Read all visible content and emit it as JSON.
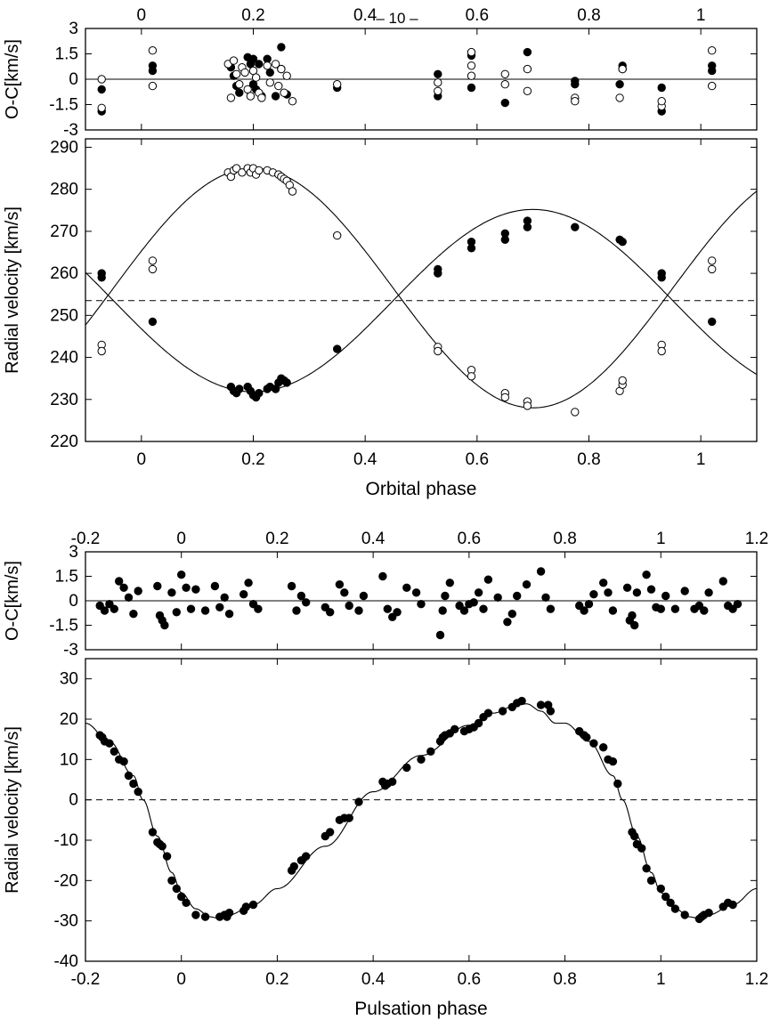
{
  "page_header": "– 10 –",
  "chart_data": [
    {
      "id": "orbital_oc",
      "type": "scatter",
      "xlim": [
        -0.1,
        1.1
      ],
      "ylim": [
        -3,
        3
      ],
      "xticks": [
        0,
        0.2,
        0.4,
        0.6,
        0.8,
        1
      ],
      "xtick_labels": [
        "0",
        "0.2",
        "0.4",
        "0.6",
        "0.8",
        "1"
      ],
      "yticks": [
        3,
        1.5,
        0,
        -1.5,
        -3
      ],
      "ytick_labels": [
        "3",
        "1.5",
        "0",
        "-1.5",
        "-3"
      ],
      "ylabel": "O-C[km/s]",
      "zero_line": 0,
      "series": [
        {
          "name": "primary (filled)",
          "marker": "filled",
          "x": [
            -0.071,
            -0.071,
            0.02,
            0.02,
            0.16,
            0.165,
            0.17,
            0.175,
            0.19,
            0.195,
            0.2,
            0.2,
            0.205,
            0.21,
            0.215,
            0.225,
            0.23,
            0.24,
            0.25,
            0.25,
            0.26,
            0.35,
            0.53,
            0.53,
            0.59,
            0.59,
            0.65,
            0.69,
            0.775,
            0.775,
            0.855,
            0.86,
            0.86,
            0.93,
            0.93,
            1.02,
            1.02
          ],
          "y": [
            -0.6,
            -1.9,
            0.5,
            0.8,
            0.7,
            0.2,
            -0.4,
            -0.8,
            1.3,
            0.9,
            1.2,
            -0.3,
            -0.6,
            0.9,
            -1.0,
            1.2,
            0.4,
            -1.0,
            1.9,
            0.6,
            -0.9,
            -0.5,
            0.3,
            -1.0,
            1.4,
            -0.5,
            -1.4,
            1.6,
            -0.1,
            -0.3,
            -0.3,
            0.8,
            0.6,
            -0.5,
            -1.9,
            0.5,
            0.8
          ]
        },
        {
          "name": "secondary (open)",
          "marker": "open",
          "x": [
            -0.071,
            -0.071,
            0.02,
            0.02,
            0.155,
            0.16,
            0.165,
            0.17,
            0.175,
            0.18,
            0.185,
            0.19,
            0.195,
            0.2,
            0.205,
            0.21,
            0.215,
            0.225,
            0.23,
            0.24,
            0.245,
            0.25,
            0.255,
            0.26,
            0.27,
            0.35,
            0.53,
            0.53,
            0.59,
            0.59,
            0.59,
            0.65,
            0.65,
            0.69,
            0.69,
            0.775,
            0.775,
            0.855,
            0.86,
            0.93,
            0.93,
            1.02,
            1.02
          ],
          "y": [
            0,
            -1.7,
            1.7,
            -0.4,
            0.9,
            -1.1,
            1.1,
            0.3,
            -0.3,
            0.7,
            0.4,
            -0.6,
            -1.0,
            0.5,
            0.1,
            -0.8,
            -1.1,
            0.8,
            -0.2,
            0.9,
            -0.4,
            0.6,
            -0.8,
            0.2,
            -1.3,
            -0.3,
            -0.2,
            -0.7,
            1.6,
            0.8,
            0.2,
            0.3,
            -0.3,
            0.6,
            -0.7,
            -1.1,
            -1.3,
            -1.1,
            0.6,
            -1.6,
            -1.3,
            1.7,
            -0.4
          ]
        }
      ]
    },
    {
      "id": "orbital_rv",
      "type": "scatter",
      "xlim": [
        -0.1,
        1.1
      ],
      "ylim": [
        220,
        292
      ],
      "xticks": [
        0,
        0.2,
        0.4,
        0.6,
        0.8,
        1
      ],
      "xtick_labels": [
        "0",
        "0.2",
        "0.4",
        "0.6",
        "0.8",
        "1"
      ],
      "yticks": [
        290,
        280,
        270,
        260,
        250,
        240,
        230,
        220
      ],
      "ytick_labels": [
        "290",
        "280",
        "270",
        "260",
        "250",
        "240",
        "230",
        "220"
      ],
      "xlabel": "Orbital phase",
      "ylabel": "Radial velocity [km/s]",
      "gamma_velocity": 253.5,
      "model_curves": [
        {
          "name": "primary orbit",
          "gamma": 253.5,
          "K": 21.7,
          "phase_of_min": 0.2
        },
        {
          "name": "secondary orbit",
          "gamma": 256.5,
          "K": 28.5,
          "phase_of_max": 0.2
        }
      ],
      "series": [
        {
          "name": "primary (filled)",
          "marker": "filled",
          "x": [
            -0.071,
            -0.071,
            0.02,
            0.16,
            0.165,
            0.17,
            0.175,
            0.19,
            0.195,
            0.2,
            0.205,
            0.21,
            0.225,
            0.23,
            0.24,
            0.245,
            0.25,
            0.255,
            0.26,
            0.35,
            0.53,
            0.53,
            0.59,
            0.59,
            0.65,
            0.65,
            0.69,
            0.69,
            0.775,
            0.855,
            0.86,
            0.93,
            0.93,
            1.02
          ],
          "y": [
            260,
            259,
            248.5,
            233,
            232,
            231.5,
            232.5,
            233,
            232,
            231,
            230.5,
            231.5,
            232.5,
            233,
            232.5,
            234,
            235,
            234.5,
            234,
            242,
            261,
            260,
            267.5,
            266,
            269.5,
            268,
            272.5,
            271,
            271,
            268,
            267.5,
            260,
            259,
            248.5
          ]
        },
        {
          "name": "secondary (open)",
          "marker": "open",
          "x": [
            -0.071,
            -0.071,
            0.02,
            0.02,
            0.155,
            0.16,
            0.165,
            0.17,
            0.18,
            0.19,
            0.195,
            0.2,
            0.205,
            0.21,
            0.225,
            0.235,
            0.245,
            0.25,
            0.255,
            0.26,
            0.265,
            0.27,
            0.35,
            0.53,
            0.53,
            0.59,
            0.59,
            0.65,
            0.65,
            0.69,
            0.69,
            0.775,
            0.855,
            0.86,
            0.86,
            0.93,
            0.93,
            1.02,
            1.02
          ],
          "y": [
            243,
            241.5,
            263,
            261,
            284,
            283,
            284.5,
            285,
            284,
            285,
            284,
            285,
            283.5,
            284.5,
            284.5,
            284,
            283.5,
            283,
            282.5,
            282,
            281,
            279.5,
            269,
            242.5,
            241.5,
            237,
            235.5,
            231.5,
            230.5,
            229.5,
            228.5,
            227,
            232,
            233.5,
            234.5,
            243,
            241.5,
            263,
            261
          ]
        }
      ]
    },
    {
      "id": "pulsation_oc",
      "type": "scatter",
      "xlim": [
        -0.2,
        1.2
      ],
      "ylim": [
        -3,
        3
      ],
      "xticks": [
        -0.2,
        0,
        0.2,
        0.4,
        0.6,
        0.8,
        1,
        1.2
      ],
      "xtick_labels": [
        "-0.2",
        "0",
        "0.2",
        "0.4",
        "0.6",
        "0.8",
        "1",
        "1.2"
      ],
      "yticks": [
        3,
        1.5,
        0,
        -1.5,
        -3
      ],
      "ytick_labels": [
        "3",
        "1.5",
        "0",
        "-1.5",
        "-3"
      ],
      "ylabel": "O-C[km/s]",
      "zero_line": 0,
      "series": [
        {
          "name": "pulsation residuals",
          "marker": "filled",
          "x": [
            -0.17,
            -0.16,
            -0.15,
            -0.14,
            -0.13,
            -0.12,
            -0.11,
            -0.1,
            -0.09,
            -0.05,
            -0.045,
            -0.04,
            -0.035,
            -0.02,
            -0.01,
            0.0,
            0.01,
            0.02,
            0.03,
            0.05,
            0.07,
            0.08,
            0.09,
            0.1,
            0.13,
            0.14,
            0.15,
            0.16,
            0.23,
            0.24,
            0.25,
            0.26,
            0.3,
            0.31,
            0.33,
            0.34,
            0.35,
            0.37,
            0.38,
            0.42,
            0.43,
            0.44,
            0.45,
            0.47,
            0.49,
            0.5,
            0.54,
            0.545,
            0.55,
            0.56,
            0.58,
            0.59,
            0.6,
            0.61,
            0.62,
            0.63,
            0.64,
            0.66,
            0.68,
            0.69,
            0.7,
            0.72,
            0.75,
            0.76,
            0.77,
            0.83,
            0.84,
            0.85,
            0.86,
            0.88,
            0.89,
            0.9,
            0.93,
            0.935,
            0.94,
            0.945,
            0.95,
            0.97,
            0.98,
            0.99,
            1.0,
            1.01,
            1.03,
            1.05,
            1.07,
            1.08,
            1.09,
            1.1,
            1.13,
            1.14,
            1.15,
            1.16
          ],
          "y": [
            -0.3,
            -0.6,
            -0.2,
            -0.5,
            1.2,
            0.8,
            0.2,
            -0.8,
            0.6,
            0.9,
            -0.9,
            -1.2,
            -1.5,
            0.5,
            -0.7,
            1.6,
            0.8,
            -0.5,
            0.7,
            -0.6,
            0.9,
            -0.4,
            0.2,
            -0.8,
            0.4,
            1.1,
            -0.2,
            -0.5,
            0.9,
            -0.6,
            0.3,
            -0.1,
            -0.4,
            -0.7,
            1.0,
            0.5,
            -0.3,
            -0.6,
            0.3,
            1.5,
            -0.5,
            -1.0,
            -0.7,
            0.8,
            0.5,
            -0.2,
            -2.1,
            -0.6,
            0.3,
            1.1,
            -0.3,
            -0.6,
            -0.2,
            -0.1,
            0.5,
            -0.5,
            1.3,
            0.2,
            -1.3,
            -0.8,
            0.3,
            1.0,
            1.8,
            0.2,
            -0.5,
            -0.3,
            -0.6,
            -0.2,
            0.4,
            1.1,
            0.5,
            -0.6,
            0.8,
            -1.2,
            -0.9,
            -1.5,
            0.5,
            1.6,
            0.7,
            -0.4,
            -0.5,
            0.3,
            -0.5,
            0.6,
            -0.5,
            -0.3,
            -0.6,
            0.5,
            1.2,
            -0.3,
            -0.5,
            -0.2
          ]
        }
      ]
    },
    {
      "id": "pulsation_rv",
      "type": "scatter",
      "xlim": [
        -0.2,
        1.2
      ],
      "ylim": [
        -40,
        35
      ],
      "xticks": [
        -0.2,
        0,
        0.2,
        0.4,
        0.6,
        0.8,
        1,
        1.2
      ],
      "xtick_labels": [
        "-0.2",
        "0",
        "0.2",
        "0.4",
        "0.6",
        "0.8",
        "1",
        "1.2"
      ],
      "yticks": [
        30,
        20,
        10,
        0,
        -10,
        -20,
        -30,
        -40
      ],
      "ytick_labels": [
        "30",
        "20",
        "10",
        "0",
        "-10",
        "-20",
        "-30",
        "-40"
      ],
      "xlabel": "Pulsation phase",
      "ylabel": "Radial velocity [km/s]",
      "zero_line": 0,
      "model_curve": {
        "name": "pulsation curve",
        "period": 1,
        "phase": [
          -0.2,
          -0.15,
          -0.1,
          -0.08,
          -0.05,
          -0.02,
          0.0,
          0.03,
          0.06,
          0.08,
          0.1,
          0.15,
          0.2,
          0.3,
          0.4,
          0.5,
          0.6,
          0.65,
          0.7,
          0.72,
          0.75,
          0.78
        ],
        "rv": [
          19,
          14.5,
          6,
          0,
          -9,
          -18,
          -23,
          -27,
          -29,
          -29.4,
          -28.5,
          -26,
          -22,
          -11.5,
          2,
          11,
          18.5,
          21.5,
          23.5,
          23.8,
          22,
          19
        ]
      },
      "series": [
        {
          "name": "pulsation RV",
          "marker": "filled",
          "x": [
            -0.17,
            -0.165,
            -0.16,
            -0.15,
            -0.14,
            -0.13,
            -0.12,
            -0.11,
            -0.1,
            -0.09,
            -0.06,
            -0.05,
            -0.045,
            -0.04,
            -0.03,
            -0.02,
            -0.01,
            0.0,
            0.01,
            0.03,
            0.05,
            0.08,
            0.09,
            0.095,
            0.1,
            0.13,
            0.135,
            0.15,
            0.23,
            0.235,
            0.25,
            0.26,
            0.3,
            0.31,
            0.33,
            0.34,
            0.35,
            0.37,
            0.42,
            0.425,
            0.43,
            0.44,
            0.47,
            0.5,
            0.52,
            0.54,
            0.545,
            0.55,
            0.56,
            0.57,
            0.59,
            0.6,
            0.61,
            0.62,
            0.63,
            0.64,
            0.67,
            0.69,
            0.7,
            0.71,
            0.75,
            0.765,
            0.77,
            0.83,
            0.84,
            0.845,
            0.86,
            0.88,
            0.89,
            0.9,
            0.91,
            0.94,
            0.945,
            0.95,
            0.96,
            0.97,
            0.98,
            1.0,
            1.01,
            1.02,
            1.03,
            1.05,
            1.08,
            1.085,
            1.09,
            1.1,
            1.13,
            1.14,
            1.15
          ],
          "y": [
            16,
            15.5,
            14.5,
            14,
            12,
            10,
            9.5,
            6,
            4,
            2,
            -8,
            -10.5,
            -11,
            -11.5,
            -14,
            -20,
            -22,
            -24,
            -25.5,
            -28.5,
            -29,
            -29,
            -28.5,
            -29,
            -28,
            -27.5,
            -26.5,
            -26,
            -17.5,
            -16.5,
            -15,
            -14,
            -9,
            -8,
            -5,
            -4.5,
            -4.5,
            -0.5,
            4.5,
            3.5,
            4,
            4.5,
            8,
            10,
            12,
            14.5,
            15.5,
            16,
            16.5,
            17.5,
            17,
            17.5,
            18,
            19,
            20.5,
            21.5,
            22,
            23,
            24,
            24.5,
            23.5,
            23.5,
            22,
            17,
            16,
            15.5,
            14,
            13,
            10,
            9.5,
            4,
            -8,
            -9,
            -11,
            -12,
            -17,
            -20,
            -22,
            -24,
            -25.5,
            -27,
            -28.5,
            -29.5,
            -29,
            -28.5,
            -28,
            -26.5,
            -25.5,
            -26
          ]
        }
      ]
    }
  ]
}
